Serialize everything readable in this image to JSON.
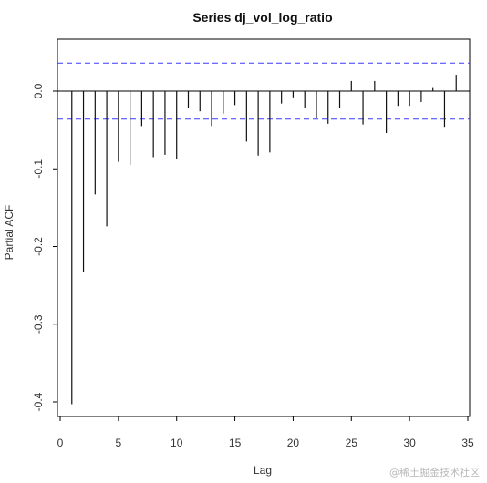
{
  "chart_data": {
    "type": "bar",
    "title": "Series  dj_vol_log_ratio",
    "xlabel": "Lag",
    "ylabel": "Partial ACF",
    "xlim": [
      0,
      35
    ],
    "ylim": [
      -0.42,
      0.06
    ],
    "xticks": [
      0,
      5,
      10,
      15,
      20,
      25,
      30,
      35
    ],
    "yticks": [
      0.0,
      -0.1,
      -0.2,
      -0.3,
      -0.4
    ],
    "ytick_labels": [
      "0.0",
      "-0.1",
      "-0.2",
      "-0.3",
      "-0.4"
    ],
    "confidence_bound": 0.036,
    "lags": [
      1,
      2,
      3,
      4,
      5,
      6,
      7,
      8,
      9,
      10,
      11,
      12,
      13,
      14,
      15,
      16,
      17,
      18,
      19,
      20,
      21,
      22,
      23,
      24,
      25,
      26,
      27,
      28,
      29,
      30,
      31,
      32,
      33,
      34
    ],
    "values": [
      -0.403,
      -0.233,
      -0.133,
      -0.174,
      -0.091,
      -0.095,
      -0.045,
      -0.085,
      -0.082,
      -0.088,
      -0.022,
      -0.026,
      -0.045,
      -0.029,
      -0.018,
      -0.065,
      -0.083,
      -0.079,
      -0.016,
      -0.008,
      -0.022,
      -0.035,
      -0.042,
      -0.022,
      0.013,
      -0.043,
      0.013,
      -0.054,
      -0.019,
      -0.019,
      -0.014,
      0.004,
      -0.046,
      0.021
    ],
    "colors": {
      "bars": "#111111",
      "bounds": "#3a3aff",
      "zero": "#000000"
    }
  },
  "watermark": "@稀土掘金技术社区"
}
